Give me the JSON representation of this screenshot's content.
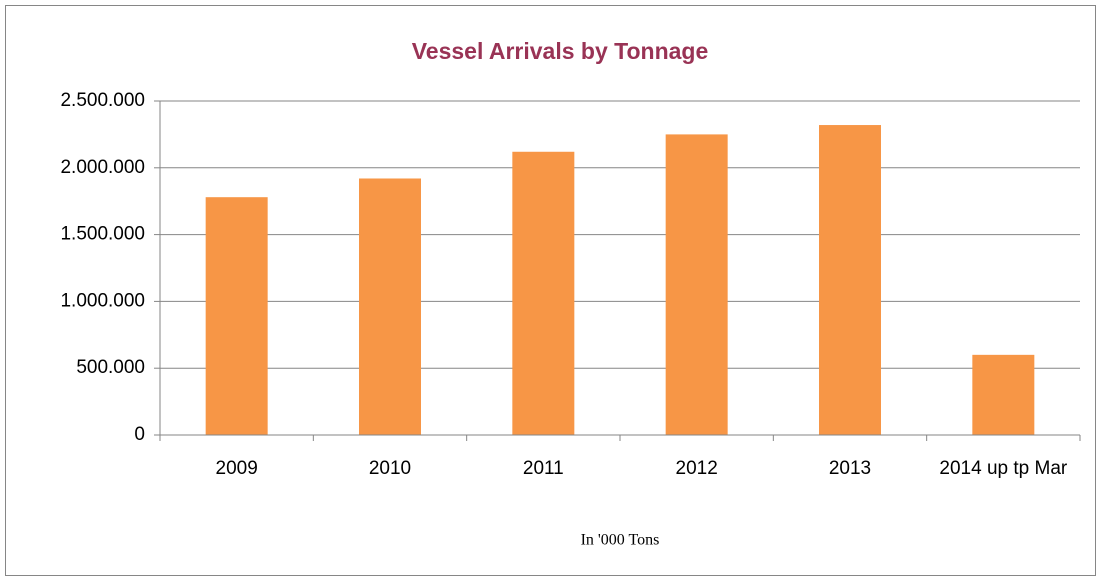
{
  "chart_data": {
    "type": "bar",
    "title": "Vessel Arrivals by Tonnage",
    "x_label": "In '000  Tons",
    "categories": [
      "2009",
      "2010",
      "2011",
      "2012",
      "2013",
      "2014 up tp Mar"
    ],
    "values": [
      1780000,
      1920000,
      2120000,
      2250000,
      2320000,
      600000
    ],
    "color": "#f79646",
    "ylim": [
      0,
      2500000
    ],
    "yticks": [
      0,
      {
        "value": 500000,
        "label": "500.000"
      },
      {
        "value": 1000000,
        "label": "1.000.000"
      },
      {
        "value": 1500000,
        "label": "1.500.000"
      },
      {
        "value": 2000000,
        "label": "2.000.000"
      },
      {
        "value": 2500000,
        "label": "2.500.000"
      }
    ],
    "grid": true
  }
}
